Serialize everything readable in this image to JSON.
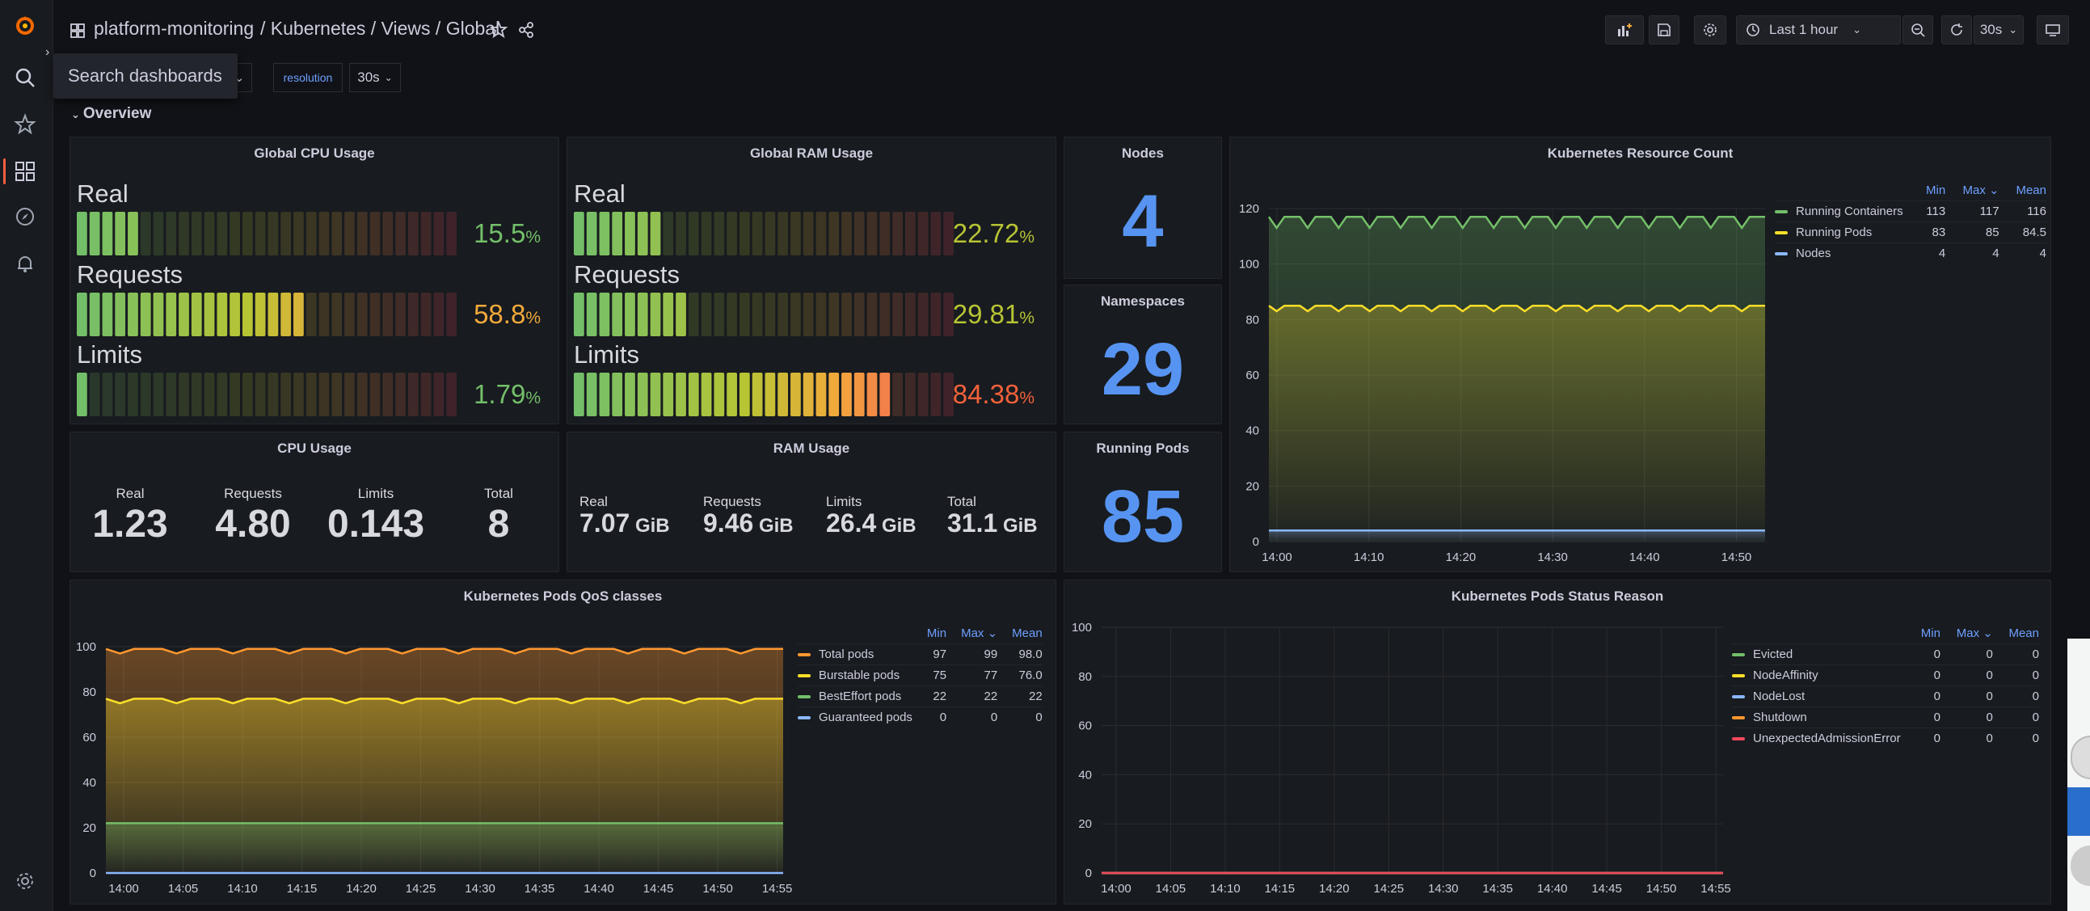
{
  "breadcrumb": {
    "folder": "platform-monitoring",
    "path": "/ Kubernetes / Views / Global"
  },
  "toolbar": {
    "time_range": "Last 1 hour",
    "refresh": "30s"
  },
  "tooltip": "Search dashboards",
  "variables": [
    {
      "label": "resolution",
      "value": "30s"
    }
  ],
  "row_title": "Overview",
  "global_cpu": {
    "title": "Global CPU Usage",
    "rows": [
      {
        "label": "Real",
        "value": "15.5",
        "unit": "%",
        "fraction": 0.155,
        "color": "#73bf69"
      },
      {
        "label": "Requests",
        "value": "58.8",
        "unit": "%",
        "fraction": 0.588,
        "color": "#f2a93b"
      },
      {
        "label": "Limits",
        "value": "1.79",
        "unit": "%",
        "fraction": 0.0179,
        "color": "#73bf69"
      }
    ]
  },
  "global_ram": {
    "title": "Global RAM Usage",
    "rows": [
      {
        "label": "Real",
        "value": "22.72",
        "unit": "%",
        "fraction": 0.2272,
        "color": "#b7c434"
      },
      {
        "label": "Requests",
        "value": "29.81",
        "unit": "%",
        "fraction": 0.2981,
        "color": "#b7c434"
      },
      {
        "label": "Limits",
        "value": "84.38",
        "unit": "%",
        "fraction": 0.8438,
        "color": "#f2613b"
      }
    ]
  },
  "nodes": {
    "title": "Nodes",
    "value": "4"
  },
  "namespaces": {
    "title": "Namespaces",
    "value": "29"
  },
  "running_pods": {
    "title": "Running Pods",
    "value": "85"
  },
  "cpu_usage": {
    "title": "CPU Usage",
    "stats": [
      {
        "name": "Real",
        "value": "1.23",
        "unit": ""
      },
      {
        "name": "Requests",
        "value": "4.80",
        "unit": ""
      },
      {
        "name": "Limits",
        "value": "0.143",
        "unit": ""
      },
      {
        "name": "Total",
        "value": "8",
        "unit": ""
      }
    ]
  },
  "ram_usage": {
    "title": "RAM Usage",
    "stats": [
      {
        "name": "Real",
        "value": "7.07",
        "unit": " GiB"
      },
      {
        "name": "Requests",
        "value": "9.46",
        "unit": " GiB"
      },
      {
        "name": "Limits",
        "value": "26.4",
        "unit": " GiB"
      },
      {
        "name": "Total",
        "value": "31.1",
        "unit": " GiB"
      }
    ]
  },
  "legend_headers": {
    "min": "Min",
    "max": "Max",
    "mean": "Mean"
  },
  "chart_data": [
    {
      "type": "line",
      "title": "Kubernetes Resource Count",
      "x": [
        "14:00",
        "14:10",
        "14:20",
        "14:30",
        "14:40",
        "14:50"
      ],
      "ylim": [
        0,
        120
      ],
      "yticks": [
        0,
        20,
        40,
        60,
        80,
        100,
        120
      ],
      "grid": true,
      "legend_position": "right",
      "series": [
        {
          "name": "Running Containers",
          "color": "#73bf69",
          "min": "113",
          "max": "117",
          "mean": "116",
          "low": 113,
          "high": 117
        },
        {
          "name": "Running Pods",
          "color": "#fade2a",
          "min": "83",
          "max": "85",
          "mean": "84.5",
          "low": 83,
          "high": 85
        },
        {
          "name": "Nodes",
          "color": "#8ab8ff",
          "min": "4",
          "max": "4",
          "mean": "4",
          "low": 4,
          "high": 4
        }
      ]
    },
    {
      "type": "area",
      "title": "Kubernetes Pods QoS classes",
      "x": [
        "14:00",
        "14:05",
        "14:10",
        "14:15",
        "14:20",
        "14:25",
        "14:30",
        "14:35",
        "14:40",
        "14:45",
        "14:50",
        "14:55"
      ],
      "ylim": [
        0,
        100
      ],
      "yticks": [
        0,
        20,
        40,
        60,
        80,
        100
      ],
      "grid": true,
      "legend_position": "right",
      "series": [
        {
          "name": "Total pods",
          "color": "#ff9830",
          "min": "97",
          "max": "99",
          "mean": "98.0",
          "low": 97,
          "high": 99
        },
        {
          "name": "Burstable pods",
          "color": "#fade2a",
          "min": "75",
          "max": "77",
          "mean": "76.0",
          "low": 75,
          "high": 77
        },
        {
          "name": "BestEffort pods",
          "color": "#73bf69",
          "min": "22",
          "max": "22",
          "mean": "22",
          "low": 22,
          "high": 22
        },
        {
          "name": "Guaranteed pods",
          "color": "#8ab8ff",
          "min": "0",
          "max": "0",
          "mean": "0",
          "low": 0,
          "high": 0
        }
      ]
    },
    {
      "type": "line",
      "title": "Kubernetes Pods Status Reason",
      "x": [
        "14:00",
        "14:05",
        "14:10",
        "14:15",
        "14:20",
        "14:25",
        "14:30",
        "14:35",
        "14:40",
        "14:45",
        "14:50",
        "14:55"
      ],
      "ylim": [
        0,
        100
      ],
      "yticks": [
        0,
        20,
        40,
        60,
        80,
        100
      ],
      "grid": true,
      "legend_position": "right",
      "series": [
        {
          "name": "Evicted",
          "color": "#73bf69",
          "min": "0",
          "max": "0",
          "mean": "0",
          "low": 0,
          "high": 0
        },
        {
          "name": "NodeAffinity",
          "color": "#fade2a",
          "min": "0",
          "max": "0",
          "mean": "0",
          "low": 0,
          "high": 0
        },
        {
          "name": "NodeLost",
          "color": "#8ab8ff",
          "min": "0",
          "max": "0",
          "mean": "0",
          "low": 0,
          "high": 0
        },
        {
          "name": "Shutdown",
          "color": "#ff9830",
          "min": "0",
          "max": "0",
          "mean": "0",
          "low": 0,
          "high": 0
        },
        {
          "name": "UnexpectedAdmissionError",
          "color": "#f2495c",
          "min": "0",
          "max": "0",
          "mean": "0",
          "low": 0,
          "high": 0
        }
      ]
    }
  ]
}
